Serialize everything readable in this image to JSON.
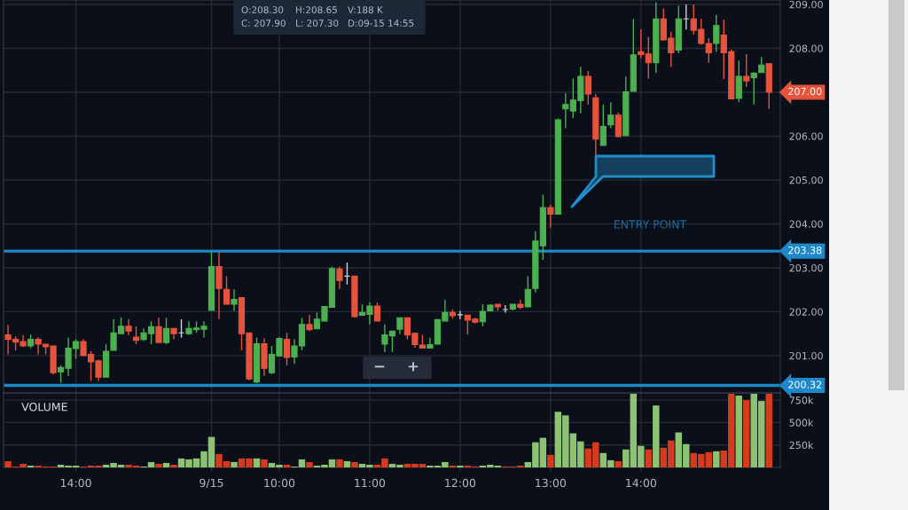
{
  "chart_data": [
    {
      "type": "candlestick",
      "categories": [
        null,
        null,
        null,
        null,
        null,
        null,
        null,
        null,
        null,
        null,
        null,
        null,
        null,
        null,
        null,
        null,
        null,
        null,
        null,
        null,
        null,
        null,
        null,
        null,
        null,
        null,
        null,
        null,
        null,
        null,
        null,
        null,
        null,
        null,
        null,
        null,
        null,
        null,
        null,
        null,
        null,
        null,
        null,
        null,
        null,
        null,
        null,
        null,
        null,
        null,
        null,
        null,
        null,
        null,
        null,
        null,
        null,
        null,
        null,
        null,
        null,
        null,
        null,
        null,
        null,
        null,
        null,
        null,
        null,
        null,
        null,
        null,
        null,
        null,
        null,
        null,
        null,
        null,
        null,
        null,
        null,
        null,
        null,
        null,
        null,
        null,
        null,
        null,
        null,
        null,
        null,
        null,
        null,
        null,
        null,
        null,
        null,
        null,
        null,
        null,
        null,
        null
      ],
      "ohlc": [
        [
          201.47,
          201.7,
          201.03,
          201.37
        ],
        [
          201.37,
          201.44,
          201.12,
          201.31
        ],
        [
          201.32,
          201.47,
          201.2,
          201.22
        ],
        [
          201.22,
          201.48,
          201.17,
          201.37
        ],
        [
          201.37,
          201.42,
          201.03,
          201.26
        ],
        [
          201.26,
          201.26,
          201.03,
          201.2
        ],
        [
          201.22,
          201.22,
          200.57,
          200.61
        ],
        [
          200.63,
          200.78,
          200.38,
          200.73
        ],
        [
          200.71,
          201.41,
          200.54,
          201.17
        ],
        [
          201.16,
          201.37,
          200.93,
          201.32
        ],
        [
          201.32,
          201.37,
          201.0,
          201.0
        ],
        [
          201.03,
          201.1,
          200.42,
          200.86
        ],
        [
          200.88,
          200.91,
          200.42,
          200.51
        ],
        [
          200.51,
          201.26,
          200.51,
          201.1
        ],
        [
          201.12,
          201.83,
          201.12,
          201.52
        ],
        [
          201.5,
          201.87,
          201.5,
          201.67
        ],
        [
          201.67,
          201.83,
          201.47,
          201.56
        ],
        [
          201.42,
          201.67,
          201.26,
          201.35
        ],
        [
          201.37,
          201.62,
          201.33,
          201.52
        ],
        [
          201.5,
          201.78,
          201.26,
          201.66
        ],
        [
          201.66,
          201.86,
          201.3,
          201.3
        ],
        [
          201.3,
          201.86,
          201.26,
          201.62
        ],
        [
          201.62,
          201.62,
          201.37,
          201.5
        ],
        [
          201.52,
          201.83,
          201.41,
          201.52
        ],
        [
          201.5,
          201.78,
          201.47,
          201.62
        ],
        [
          201.59,
          201.78,
          201.52,
          201.63
        ],
        [
          201.6,
          201.78,
          201.41,
          201.67
        ],
        [
          202.03,
          203.36,
          202.03,
          203.03
        ],
        [
          203.03,
          203.36,
          201.83,
          202.53
        ],
        [
          202.51,
          202.81,
          202.17,
          202.17
        ],
        [
          202.17,
          202.51,
          202.02,
          202.28
        ],
        [
          202.32,
          202.32,
          201.12,
          201.5
        ],
        [
          201.52,
          201.52,
          200.44,
          200.47
        ],
        [
          200.4,
          201.41,
          200.37,
          201.27
        ],
        [
          201.27,
          201.39,
          200.54,
          200.71
        ],
        [
          200.61,
          201.22,
          200.58,
          201.03
        ],
        [
          200.99,
          201.42,
          200.99,
          201.39
        ],
        [
          201.37,
          201.52,
          200.78,
          200.96
        ],
        [
          200.97,
          201.37,
          200.81,
          201.22
        ],
        [
          201.22,
          201.86,
          201.12,
          201.71
        ],
        [
          201.71,
          201.93,
          201.56,
          201.59
        ],
        [
          201.61,
          201.98,
          201.61,
          201.83
        ],
        [
          201.79,
          202.12,
          201.79,
          202.12
        ],
        [
          202.1,
          203.03,
          202.1,
          202.98
        ],
        [
          202.97,
          203.03,
          202.52,
          202.71
        ],
        [
          202.81,
          203.12,
          202.62,
          202.81
        ],
        [
          202.81,
          202.81,
          201.86,
          201.89
        ],
        [
          201.92,
          202.17,
          201.92,
          201.98
        ],
        [
          201.94,
          202.21,
          201.71,
          202.13
        ],
        [
          202.13,
          202.21,
          201.79,
          201.79
        ],
        [
          201.26,
          201.71,
          201.08,
          201.47
        ],
        [
          201.45,
          201.56,
          201.08,
          201.56
        ],
        [
          201.6,
          201.86,
          201.49,
          201.86
        ],
        [
          201.86,
          201.86,
          201.37,
          201.47
        ],
        [
          201.51,
          201.51,
          201.18,
          201.25
        ],
        [
          201.24,
          201.47,
          201.17,
          201.17
        ],
        [
          201.17,
          201.41,
          201.17,
          201.25
        ],
        [
          201.26,
          201.82,
          201.26,
          201.82
        ],
        [
          201.79,
          202.27,
          201.79,
          201.98
        ],
        [
          201.98,
          202.05,
          201.84,
          201.91
        ],
        [
          201.93,
          202.02,
          201.83,
          201.93
        ],
        [
          201.92,
          201.92,
          201.48,
          201.81
        ],
        [
          201.83,
          201.86,
          201.73,
          201.76
        ],
        [
          201.77,
          202.17,
          201.67,
          202.01
        ],
        [
          202.02,
          202.17,
          202.02,
          202.15
        ],
        [
          202.17,
          202.17,
          202.02,
          202.11
        ],
        [
          202.05,
          202.15,
          201.98,
          202.05
        ],
        [
          202.06,
          202.17,
          202.03,
          202.17
        ],
        [
          202.17,
          202.27,
          202.06,
          202.1
        ],
        [
          202.11,
          202.81,
          202.11,
          202.51
        ],
        [
          202.53,
          203.83,
          202.44,
          203.61
        ],
        [
          203.5,
          204.67,
          203.18,
          204.37
        ],
        [
          204.37,
          204.44,
          203.92,
          204.22
        ],
        [
          204.22,
          206.4,
          204.22,
          206.37
        ],
        [
          206.62,
          206.98,
          206.18,
          206.72
        ],
        [
          206.57,
          207.31,
          206.41,
          206.82
        ],
        [
          206.81,
          207.58,
          206.52,
          207.36
        ],
        [
          207.36,
          207.48,
          206.72,
          206.96
        ],
        [
          206.87,
          206.96,
          205.55,
          205.93
        ],
        [
          205.79,
          206.72,
          205.79,
          206.22
        ],
        [
          206.26,
          206.77,
          206.18,
          206.48
        ],
        [
          206.48,
          206.54,
          205.97,
          205.99
        ],
        [
          206.01,
          207.36,
          206.01,
          207.01
        ],
        [
          207.02,
          208.67,
          207.02,
          207.85
        ],
        [
          207.92,
          208.43,
          207.77,
          207.86
        ],
        [
          207.87,
          208.26,
          207.31,
          207.67
        ],
        [
          207.67,
          209.05,
          207.44,
          208.67
        ],
        [
          208.67,
          208.91,
          208.17,
          208.19
        ],
        [
          208.23,
          208.38,
          207.58,
          207.9
        ],
        [
          207.96,
          208.97,
          207.89,
          208.67
        ],
        [
          208.67,
          209.0,
          208.43,
          208.67
        ],
        [
          208.67,
          209.0,
          208.31,
          208.41
        ],
        [
          208.43,
          208.67,
          208.08,
          208.11
        ],
        [
          208.11,
          208.23,
          207.67,
          207.9
        ],
        [
          208.11,
          208.76,
          207.92,
          208.52
        ],
        [
          208.3,
          208.65,
          207.3,
          207.9
        ],
        [
          207.92,
          207.97,
          206.83,
          206.85
        ],
        [
          206.86,
          207.72,
          206.77,
          207.36
        ],
        [
          207.36,
          207.87,
          207.12,
          207.26
        ],
        [
          207.33,
          207.46,
          206.72,
          207.43
        ],
        [
          207.45,
          207.8,
          207.45,
          207.62
        ],
        [
          207.65,
          207.65,
          206.62,
          207.0
        ]
      ],
      "colors": [
        "#e5533d",
        "#e5533d",
        "#e5533d",
        "#4caf50",
        "#e5533d",
        "#e5533d",
        "#e5533d",
        "#4caf50",
        "#4caf50",
        "#4caf50",
        "#e5533d",
        "#e5533d",
        "#e5533d",
        "#4caf50",
        "#4caf50",
        "#4caf50",
        "#e5533d",
        "#e5533d",
        "#4caf50",
        "#4caf50",
        "#e5533d",
        "#4caf50",
        "#e5533d",
        "#cfd2d8",
        "#4caf50",
        "#4caf50",
        "#4caf50",
        "#4caf50",
        "#e5533d",
        "#e5533d",
        "#4caf50",
        "#e5533d",
        "#e5533d",
        "#4caf50",
        "#e5533d",
        "#4caf50",
        "#4caf50",
        "#e5533d",
        "#4caf50",
        "#4caf50",
        "#e5533d",
        "#4caf50",
        "#4caf50",
        "#4caf50",
        "#e5533d",
        "#cfd2d8",
        "#e5533d",
        "#4caf50",
        "#4caf50",
        "#e5533d",
        "#4caf50",
        "#4caf50",
        "#4caf50",
        "#e5533d",
        "#e5533d",
        "#e5533d",
        "#4caf50",
        "#4caf50",
        "#4caf50",
        "#e5533d",
        "#cfd2d8",
        "#e5533d",
        "#e5533d",
        "#4caf50",
        "#4caf50",
        "#e5533d",
        "#cfd2d8",
        "#4caf50",
        "#e5533d",
        "#4caf50",
        "#4caf50",
        "#4caf50",
        "#e5533d",
        "#4caf50",
        "#4caf50",
        "#4caf50",
        "#4caf50",
        "#e5533d",
        "#e5533d",
        "#4caf50",
        "#4caf50",
        "#e5533d",
        "#4caf50",
        "#4caf50",
        "#e5533d",
        "#e5533d",
        "#4caf50",
        "#e5533d",
        "#e5533d",
        "#4caf50",
        "#cfd2d8",
        "#e5533d",
        "#e5533d",
        "#e5533d",
        "#4caf50",
        "#e5533d",
        "#e5533d",
        "#4caf50",
        "#e5533d",
        "#4caf50",
        "#4caf50",
        "#e5533d"
      ],
      "ylim": [
        200.15,
        209.1
      ],
      "yticks": [
        {
          "value": 201,
          "label": "201.00"
        },
        {
          "value": 202,
          "label": "202.00"
        },
        {
          "value": 203,
          "label": "203.00"
        },
        {
          "value": 204,
          "label": "204.00"
        },
        {
          "value": 205,
          "label": "205.00"
        },
        {
          "value": 206,
          "label": "206.00"
        },
        {
          "value": 207,
          "label": null
        },
        {
          "value": 208,
          "label": "208.00"
        },
        {
          "value": 209,
          "label": "209.00"
        }
      ],
      "grid": true,
      "tick_labels": "y",
      "ref_lines": [
        {
          "axis": "y",
          "value": 203.38,
          "label": "203.38",
          "color": "#1e88c8"
        },
        {
          "axis": "y",
          "value": 200.32,
          "label": "200.32",
          "color": "#1e88c8"
        }
      ],
      "annotations": [
        "207.00",
        "O:208.30",
        "H:208.65",
        "V:188 K",
        "C: 207.90",
        "L: 207.30",
        "D:09-15 14:55",
        "ENTRY POINT",
        "−",
        "+"
      ]
    },
    {
      "type": "bar",
      "title": "VOLUME",
      "categories": [
        null,
        null,
        null,
        null,
        null,
        null,
        null,
        null,
        null,
        "14:00",
        null,
        null,
        null,
        null,
        null,
        null,
        null,
        null,
        null,
        null,
        null,
        null,
        null,
        null,
        null,
        null,
        null,
        "9/15",
        null,
        null,
        null,
        null,
        null,
        null,
        null,
        null,
        "10:00",
        null,
        null,
        null,
        null,
        null,
        null,
        null,
        null,
        null,
        null,
        null,
        "11:00",
        null,
        null,
        null,
        null,
        null,
        null,
        null,
        null,
        null,
        null,
        null,
        "12:00",
        null,
        null,
        null,
        null,
        null,
        null,
        null,
        null,
        null,
        null,
        null,
        "13:00",
        null,
        null,
        null,
        null,
        null,
        null,
        null,
        null,
        null,
        null,
        null,
        "14:00",
        null,
        null,
        null,
        null,
        null,
        null,
        null,
        null,
        null,
        null,
        null,
        null,
        null,
        null,
        null,
        null,
        null
      ],
      "values": [
        70000,
        10000,
        40000,
        20000,
        20000,
        10000,
        10000,
        30000,
        20000,
        20000,
        10000,
        20000,
        20000,
        30000,
        50000,
        30000,
        30000,
        20000,
        10000,
        60000,
        40000,
        50000,
        30000,
        100000,
        90000,
        100000,
        180000,
        340000,
        150000,
        70000,
        60000,
        100000,
        100000,
        100000,
        90000,
        50000,
        30000,
        30000,
        10000,
        90000,
        60000,
        20000,
        30000,
        90000,
        90000,
        70000,
        60000,
        40000,
        30000,
        30000,
        100000,
        40000,
        30000,
        40000,
        40000,
        40000,
        20000,
        20000,
        60000,
        20000,
        20000,
        20000,
        10000,
        20000,
        30000,
        20000,
        10000,
        10000,
        20000,
        60000,
        280000,
        330000,
        140000,
        620000,
        580000,
        380000,
        290000,
        210000,
        280000,
        160000,
        80000,
        70000,
        200000,
        820000,
        240000,
        200000,
        690000,
        220000,
        300000,
        390000,
        260000,
        160000,
        150000,
        170000,
        180000,
        188000,
        820000,
        800000,
        750000,
        820000,
        740000,
        820000
      ],
      "colors": [
        "#d63b1f",
        "#d63b1f",
        "#d63b1f",
        "#8cc373",
        "#d63b1f",
        "#d63b1f",
        "#d63b1f",
        "#8cc373",
        "#8cc373",
        "#8cc373",
        "#d63b1f",
        "#d63b1f",
        "#d63b1f",
        "#8cc373",
        "#8cc373",
        "#8cc373",
        "#d63b1f",
        "#d63b1f",
        "#8cc373",
        "#8cc373",
        "#d63b1f",
        "#8cc373",
        "#d63b1f",
        "#8cc373",
        "#8cc373",
        "#8cc373",
        "#8cc373",
        "#8cc373",
        "#d63b1f",
        "#d63b1f",
        "#8cc373",
        "#d63b1f",
        "#d63b1f",
        "#8cc373",
        "#d63b1f",
        "#8cc373",
        "#8cc373",
        "#d63b1f",
        "#8cc373",
        "#8cc373",
        "#d63b1f",
        "#8cc373",
        "#8cc373",
        "#8cc373",
        "#d63b1f",
        "#8cc373",
        "#d63b1f",
        "#8cc373",
        "#8cc373",
        "#d63b1f",
        "#d63b1f",
        "#8cc373",
        "#8cc373",
        "#d63b1f",
        "#d63b1f",
        "#d63b1f",
        "#8cc373",
        "#8cc373",
        "#8cc373",
        "#d63b1f",
        "#8cc373",
        "#d63b1f",
        "#d63b1f",
        "#8cc373",
        "#8cc373",
        "#8cc373",
        "#d63b1f",
        "#d63b1f",
        "#d63b1f",
        "#8cc373",
        "#8cc373",
        "#8cc373",
        "#d63b1f",
        "#8cc373",
        "#8cc373",
        "#8cc373",
        "#8cc373",
        "#d63b1f",
        "#d63b1f",
        "#8cc373",
        "#8cc373",
        "#d63b1f",
        "#8cc373",
        "#8cc373",
        "#8cc373",
        "#d63b1f",
        "#8cc373",
        "#d63b1f",
        "#d63b1f",
        "#8cc373",
        "#8cc373",
        "#d63b1f",
        "#d63b1f",
        "#d63b1f",
        "#8cc373",
        "#d63b1f",
        "#d63b1f",
        "#8cc373",
        "#d63b1f",
        "#8cc373",
        "#8cc373",
        "#d63b1f"
      ],
      "ylim": [
        0,
        830000
      ],
      "yticks": [
        {
          "value": 250000,
          "label": "250k"
        },
        {
          "value": 500000,
          "label": "500k"
        },
        {
          "value": 750000,
          "label": "750k"
        }
      ],
      "grid": true
    }
  ]
}
